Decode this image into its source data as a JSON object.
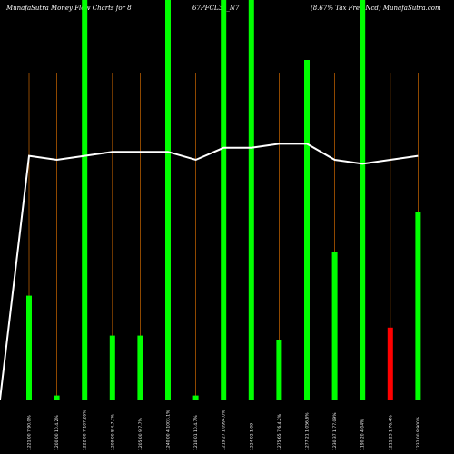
{
  "header": {
    "left": "MunafaSutra  Money Flow  Charts for 8",
    "middle": "67PFCL34_N7",
    "right": "(8.67% Tax Free  Ncd) MunafaSutra.com"
  },
  "chart_data": {
    "type": "bar",
    "y_range": [
      0,
      100
    ],
    "colors": {
      "positive": "#00ff00",
      "negative": "#ff0000",
      "line": "#ffffff",
      "tick": "#b35a00",
      "background": "#000000"
    },
    "categories": [
      "1221.00 7.90.0%",
      "1200.00 10.4.2%",
      "1222.00 7.107.26%",
      "1209.00 8.4.7.7%",
      "1205.00 9.7.7%",
      "1240.00 4.1003.1%",
      "1210.01 10.4.7%",
      "1219.27 1.0994.0%",
      "1224.02 1.09",
      "1275.65 7.6.4.2%",
      "1277.21 1.056.6%",
      "1230.37 1.77.09%",
      "1190.20 4.04%",
      "1211.23 1.76.4%",
      "1232.00 8.900%"
    ],
    "series": [
      {
        "values": [
          26,
          1,
          100,
          16,
          16,
          100,
          1,
          100,
          100,
          15,
          85,
          37,
          100,
          18,
          47
        ],
        "colors": [
          "#00ff00",
          "#00ff00",
          "#00ff00",
          "#00ff00",
          "#00ff00",
          "#00ff00",
          "#00ff00",
          "#00ff00",
          "#00ff00",
          "#00ff00",
          "#00ff00",
          "#00ff00",
          "#00ff00",
          "#ff0000",
          "#00ff00"
        ]
      },
      {
        "values": [
          61,
          60,
          61,
          62,
          62,
          62,
          60,
          63,
          63,
          64,
          64,
          60,
          59,
          60,
          61
        ]
      }
    ]
  }
}
